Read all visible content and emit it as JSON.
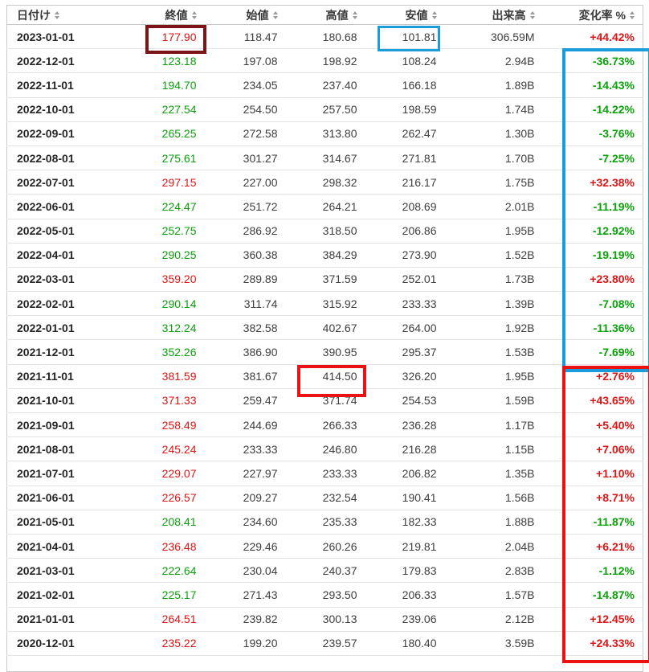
{
  "table": {
    "columns": [
      {
        "key": "date",
        "label": "日付け",
        "sortable": true
      },
      {
        "key": "close",
        "label": "終値",
        "sortable": true
      },
      {
        "key": "open",
        "label": "始値",
        "sortable": true
      },
      {
        "key": "high",
        "label": "高値",
        "sortable": true
      },
      {
        "key": "low",
        "label": "安値",
        "sortable": true
      },
      {
        "key": "volume",
        "label": "出来高",
        "sortable": true
      },
      {
        "key": "change",
        "label": "変化率 %",
        "sortable": true
      }
    ],
    "rows": [
      [
        "2023-01-01",
        "177.90",
        "118.47",
        "180.68",
        "101.81",
        "306.59M",
        "+44.42%"
      ],
      [
        "2022-12-01",
        "123.18",
        "197.08",
        "198.92",
        "108.24",
        "2.94B",
        "-36.73%"
      ],
      [
        "2022-11-01",
        "194.70",
        "234.05",
        "237.40",
        "166.18",
        "1.89B",
        "-14.43%"
      ],
      [
        "2022-10-01",
        "227.54",
        "254.50",
        "257.50",
        "198.59",
        "1.74B",
        "-14.22%"
      ],
      [
        "2022-09-01",
        "265.25",
        "272.58",
        "313.80",
        "262.47",
        "1.30B",
        "-3.76%"
      ],
      [
        "2022-08-01",
        "275.61",
        "301.27",
        "314.67",
        "271.81",
        "1.70B",
        "-7.25%"
      ],
      [
        "2022-07-01",
        "297.15",
        "227.00",
        "298.32",
        "216.17",
        "1.75B",
        "+32.38%"
      ],
      [
        "2022-06-01",
        "224.47",
        "251.72",
        "264.21",
        "208.69",
        "2.01B",
        "-11.19%"
      ],
      [
        "2022-05-01",
        "252.75",
        "286.92",
        "318.50",
        "206.86",
        "1.95B",
        "-12.92%"
      ],
      [
        "2022-04-01",
        "290.25",
        "360.38",
        "384.29",
        "273.90",
        "1.52B",
        "-19.19%"
      ],
      [
        "2022-03-01",
        "359.20",
        "289.89",
        "371.59",
        "252.01",
        "1.73B",
        "+23.80%"
      ],
      [
        "2022-02-01",
        "290.14",
        "311.74",
        "315.92",
        "233.33",
        "1.39B",
        "-7.08%"
      ],
      [
        "2022-01-01",
        "312.24",
        "382.58",
        "402.67",
        "264.00",
        "1.92B",
        "-11.36%"
      ],
      [
        "2021-12-01",
        "352.26",
        "386.90",
        "390.95",
        "295.37",
        "1.53B",
        "-7.69%"
      ],
      [
        "2021-11-01",
        "381.59",
        "381.67",
        "414.50",
        "326.20",
        "1.95B",
        "+2.76%"
      ],
      [
        "2021-10-01",
        "371.33",
        "259.47",
        "371.74",
        "254.53",
        "1.59B",
        "+43.65%"
      ],
      [
        "2021-09-01",
        "258.49",
        "244.69",
        "266.33",
        "236.28",
        "1.17B",
        "+5.40%"
      ],
      [
        "2021-08-01",
        "245.24",
        "233.33",
        "246.80",
        "216.28",
        "1.15B",
        "+7.06%"
      ],
      [
        "2021-07-01",
        "229.07",
        "227.97",
        "233.33",
        "206.82",
        "1.35B",
        "+1.10%"
      ],
      [
        "2021-06-01",
        "226.57",
        "209.27",
        "232.54",
        "190.41",
        "1.56B",
        "+8.71%"
      ],
      [
        "2021-05-01",
        "208.41",
        "234.60",
        "235.33",
        "182.33",
        "1.88B",
        "-11.87%"
      ],
      [
        "2021-04-01",
        "236.48",
        "229.46",
        "260.26",
        "219.81",
        "2.04B",
        "+6.21%"
      ],
      [
        "2021-03-01",
        "222.64",
        "230.04",
        "240.37",
        "179.83",
        "2.83B",
        "-1.12%"
      ],
      [
        "2021-02-01",
        "225.17",
        "271.43",
        "293.50",
        "206.33",
        "1.57B",
        "-14.87%"
      ],
      [
        "2021-01-01",
        "264.51",
        "239.82",
        "300.13",
        "239.06",
        "2.12B",
        "+12.45%"
      ],
      [
        "2020-12-01",
        "235.22",
        "199.20",
        "239.57",
        "180.40",
        "3.59B",
        "+24.33%"
      ]
    ]
  },
  "colors": {
    "positive_text": "#e01414",
    "negative_text": "#0aa10a",
    "maroon_box": "#7d1416",
    "blue_box": "#1b9dda",
    "red_box": "#ea1212"
  },
  "annotations": [
    {
      "name": "close-highlight-box",
      "color": "#7d1416",
      "target": "close 177.90 on 2023-01-01"
    },
    {
      "name": "low-highlight-box",
      "color": "#1b9dda",
      "target": "low 101.81 on 2023-01-01"
    },
    {
      "name": "high-highlight-box",
      "color": "#ea1212",
      "target": "high 414.50 on 2021-11-01"
    },
    {
      "name": "change-column-blue-box",
      "color": "#1b9dda",
      "target": "change % rows 2022-12-01 to 2021-12-01"
    },
    {
      "name": "change-column-red-box",
      "color": "#ea1212",
      "target": "change % rows 2021-11-01 to 2020-12-01"
    }
  ]
}
